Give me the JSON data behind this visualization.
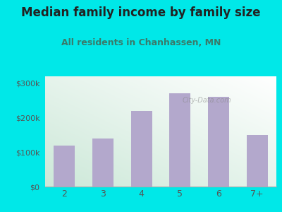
{
  "title": "Median family income by family size",
  "subtitle": "All residents in Chanhassen, MN",
  "categories": [
    "2",
    "3",
    "4",
    "5",
    "6",
    "7+"
  ],
  "values": [
    120000,
    140000,
    220000,
    270000,
    260000,
    150000
  ],
  "bar_color": "#b3a8cc",
  "background_color": "#00e8e8",
  "plot_bg_top_left": "#cce8d8",
  "plot_bg_bottom_right": "#ffffff",
  "title_color": "#222222",
  "subtitle_color": "#3a7a6a",
  "tick_color": "#555555",
  "yticks": [
    0,
    100000,
    200000,
    300000
  ],
  "ytick_labels": [
    "$0",
    "$100k",
    "$200k",
    "$300k"
  ],
  "ylim": [
    0,
    320000
  ],
  "watermark": "City-Data.com",
  "title_fontsize": 12,
  "subtitle_fontsize": 9,
  "bar_width": 0.55
}
